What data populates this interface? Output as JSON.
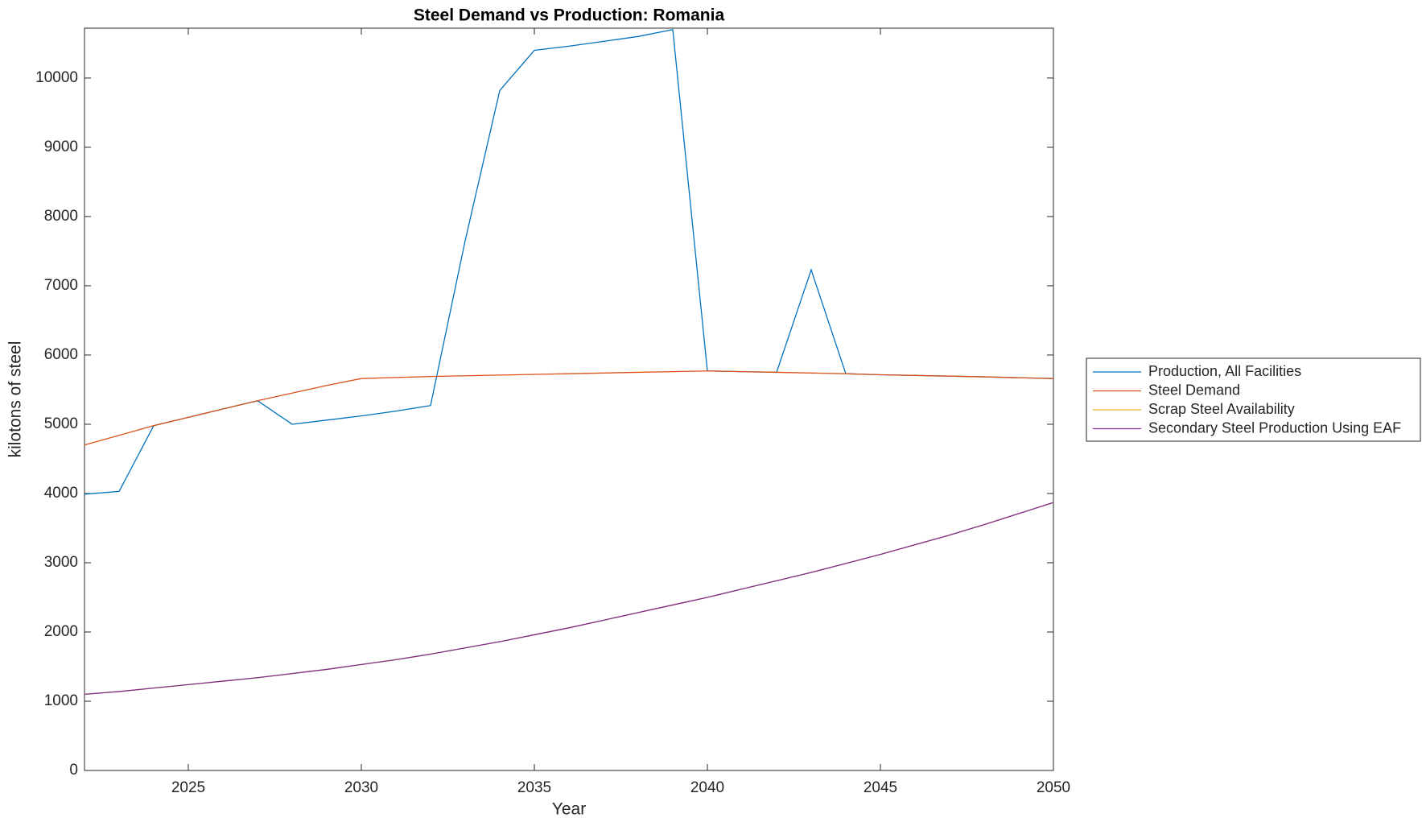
{
  "chart_data": {
    "type": "line",
    "title": "Steel Demand vs Production: Romania",
    "xlabel": "Year",
    "ylabel": "kilotons of steel",
    "x": [
      2022,
      2023,
      2024,
      2025,
      2026,
      2027,
      2028,
      2029,
      2030,
      2031,
      2032,
      2033,
      2034,
      2035,
      2036,
      2037,
      2038,
      2039,
      2040,
      2041,
      2042,
      2043,
      2044,
      2045,
      2046,
      2047,
      2048,
      2049,
      2050
    ],
    "xlim": [
      2022,
      2050
    ],
    "xticks": [
      2025,
      2030,
      2035,
      2040,
      2045,
      2050
    ],
    "ylim": [
      0,
      10720
    ],
    "yticks": [
      0,
      1000,
      2000,
      3000,
      4000,
      5000,
      6000,
      7000,
      8000,
      9000,
      10000
    ],
    "grid": false,
    "legend_position": "outside-right",
    "series": [
      {
        "name": "Production, All Facilities",
        "color": "#0072BD",
        "values": [
          3990,
          4030,
          4980,
          5100,
          5220,
          5340,
          5000,
          5060,
          5120,
          5190,
          5270,
          7650,
          9820,
          10400,
          10460,
          10530,
          10600,
          10700,
          5770,
          5760,
          5750,
          7230,
          5730,
          5715,
          5705,
          5695,
          5685,
          5672,
          5660
        ]
      },
      {
        "name": "Steel Demand",
        "color": "#D95319",
        "values": [
          4700,
          4840,
          4980,
          5100,
          5220,
          5340,
          5450,
          5560,
          5660,
          5675,
          5690,
          5700,
          5710,
          5720,
          5730,
          5740,
          5750,
          5760,
          5770,
          5760,
          5750,
          5740,
          5730,
          5715,
          5705,
          5695,
          5685,
          5672,
          5660
        ]
      },
      {
        "name": "Scrap Steel Availability",
        "color": "#EDB120",
        "values": [
          1100,
          1140,
          1190,
          1240,
          1290,
          1340,
          1400,
          1460,
          1530,
          1600,
          1680,
          1770,
          1860,
          1960,
          2060,
          2170,
          2280,
          2390,
          2500,
          2620,
          2740,
          2860,
          2990,
          3120,
          3260,
          3400,
          3550,
          3710,
          3870
        ]
      },
      {
        "name": "Secondary Steel Production Using EAF",
        "color": "#7E2F8E",
        "values": [
          1100,
          1140,
          1190,
          1240,
          1290,
          1340,
          1400,
          1460,
          1530,
          1600,
          1680,
          1770,
          1860,
          1960,
          2060,
          2170,
          2280,
          2390,
          2500,
          2620,
          2740,
          2860,
          2990,
          3120,
          3260,
          3400,
          3550,
          3710,
          3870
        ]
      }
    ]
  }
}
